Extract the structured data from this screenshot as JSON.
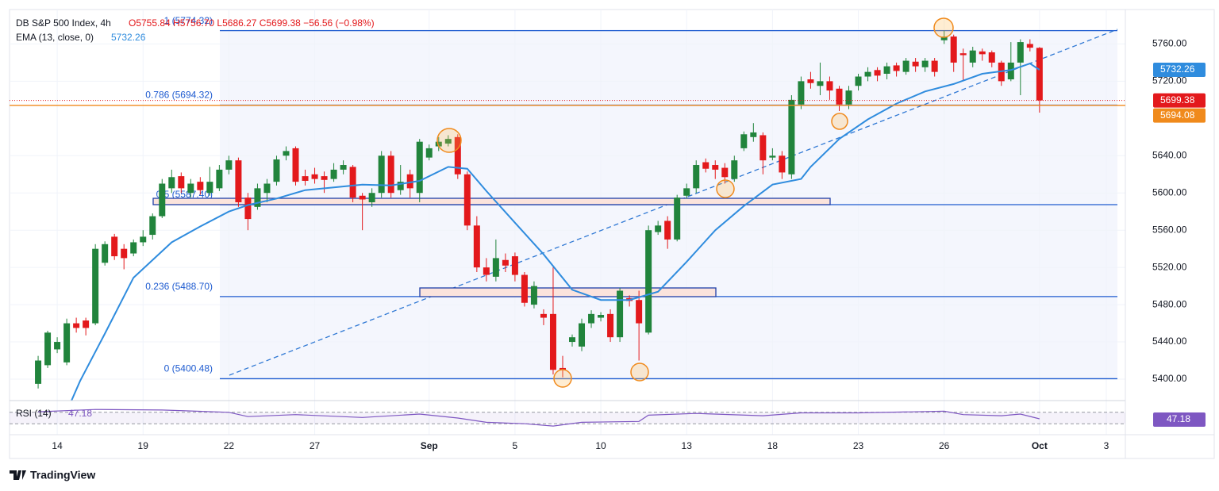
{
  "chart_data": {
    "type": "candlestick",
    "title": "DB S&P 500 Index, 4h",
    "ohlc_text": "O5755.84 H5756.70 L5686.27 C5699.38 −56.56 (−0.98%)",
    "up_color": "#21843c",
    "down_color": "#e3191c",
    "open": [
      5395,
      5415,
      5432,
      5418,
      5460,
      5463,
      5460,
      5525,
      5553,
      5540,
      5535,
      5547,
      5555,
      5575,
      5605,
      5618,
      5600,
      5612,
      5600,
      5605,
      5625,
      5635,
      5595,
      5585,
      5600,
      5612,
      5640,
      5648,
      5618,
      5620,
      5618,
      5615,
      5625,
      5628,
      5597,
      5590,
      5600,
      5640,
      5603,
      5620,
      5600,
      5638,
      5650,
      5653,
      5660,
      5620,
      5565,
      5520,
      5510,
      5528,
      5532,
      5512,
      5480,
      5470,
      5470,
      5412,
      5440,
      5435,
      5460,
      5466,
      5470,
      5445,
      5487,
      5485,
      5450,
      5558,
      5570,
      5550,
      5597,
      5605,
      5633,
      5630,
      5627,
      5615,
      5648,
      5660,
      5662,
      5638,
      5640,
      5620,
      5695,
      5722,
      5715,
      5720,
      5712,
      5695,
      5715,
      5725,
      5732,
      5728,
      5737,
      5730,
      5741,
      5735,
      5742,
      5764,
      5768,
      5750,
      5740,
      5752,
      5751,
      5740,
      5722,
      5740,
      5760,
      5755.84
    ],
    "high": [
      5425,
      5452,
      5445,
      5465,
      5466,
      5466,
      5545,
      5548,
      5556,
      5545,
      5550,
      5560,
      5578,
      5615,
      5625,
      5622,
      5615,
      5617,
      5628,
      5630,
      5640,
      5638,
      5600,
      5610,
      5615,
      5640,
      5650,
      5650,
      5625,
      5627,
      5623,
      5632,
      5635,
      5630,
      5600,
      5605,
      5645,
      5645,
      5630,
      5625,
      5658,
      5652,
      5660,
      5662,
      5663,
      5623,
      5575,
      5530,
      5550,
      5535,
      5536,
      5515,
      5505,
      5475,
      5520,
      5425,
      5448,
      5465,
      5474,
      5472,
      5475,
      5498,
      5490,
      5495,
      5565,
      5570,
      5575,
      5598,
      5610,
      5635,
      5637,
      5635,
      5632,
      5640,
      5666,
      5675,
      5665,
      5648,
      5645,
      5705,
      5725,
      5730,
      5740,
      5725,
      5715,
      5715,
      5728,
      5735,
      5735,
      5740,
      5740,
      5745,
      5745,
      5745,
      5745,
      5774.32,
      5770,
      5755,
      5757,
      5755,
      5753,
      5742,
      5762,
      5765,
      5765,
      5756.7
    ],
    "low": [
      5390,
      5412,
      5428,
      5415,
      5450,
      5447,
      5458,
      5522,
      5528,
      5518,
      5532,
      5543,
      5550,
      5573,
      5600,
      5600,
      5595,
      5598,
      5597,
      5602,
      5620,
      5585,
      5560,
      5582,
      5590,
      5608,
      5635,
      5608,
      5608,
      5610,
      5600,
      5612,
      5620,
      5590,
      5560,
      5585,
      5595,
      5595,
      5598,
      5595,
      5590,
      5635,
      5645,
      5650,
      5615,
      5560,
      5515,
      5505,
      5505,
      5515,
      5505,
      5478,
      5476,
      5458,
      5405,
      5402,
      5435,
      5430,
      5455,
      5462,
      5440,
      5440,
      5478,
      5420,
      5448,
      5555,
      5540,
      5548,
      5594,
      5600,
      5622,
      5615,
      5610,
      5612,
      5645,
      5655,
      5620,
      5635,
      5615,
      5615,
      5690,
      5712,
      5705,
      5700,
      5688,
      5690,
      5710,
      5720,
      5720,
      5722,
      5725,
      5727,
      5730,
      5730,
      5725,
      5760,
      5730,
      5720,
      5735,
      5742,
      5735,
      5715,
      5720,
      5705,
      5752,
      5686.27
    ],
    "close": [
      5420,
      5450,
      5440,
      5460,
      5455,
      5455,
      5540,
      5545,
      5532,
      5530,
      5547,
      5553,
      5575,
      5610,
      5617,
      5605,
      5610,
      5603,
      5612,
      5625,
      5635,
      5590,
      5572,
      5605,
      5610,
      5636,
      5645,
      5612,
      5613,
      5615,
      5614,
      5625,
      5630,
      5595,
      5593,
      5600,
      5640,
      5600,
      5612,
      5605,
      5655,
      5648,
      5655,
      5658,
      5620,
      5565,
      5520,
      5512,
      5530,
      5522,
      5512,
      5482,
      5500,
      5466,
      5410,
      5410,
      5445,
      5460,
      5470,
      5469,
      5445,
      5495,
      5484,
      5460,
      5560,
      5565,
      5550,
      5595,
      5605,
      5630,
      5626,
      5625,
      5617,
      5635,
      5663,
      5665,
      5635,
      5640,
      5622,
      5700,
      5720,
      5718,
      5720,
      5710,
      5695,
      5710,
      5725,
      5730,
      5726,
      5736,
      5731,
      5742,
      5736,
      5742,
      5730,
      5768,
      5740,
      5748,
      5753,
      5749,
      5740,
      5720,
      5740,
      5762,
      5756,
      5699.38
    ],
    "ema": {
      "name": "EMA (13, close, 0)",
      "last_label": "5732.26",
      "color": "#2f8cde",
      "x": [
        3.5,
        4.4,
        7,
        10,
        14,
        17,
        20,
        22,
        25,
        28,
        31,
        34,
        37,
        40,
        43,
        45,
        47,
        50,
        53,
        56,
        59,
        62,
        65,
        68,
        71,
        74,
        77,
        80,
        81,
        84,
        87,
        90,
        93,
        96,
        99,
        102,
        104,
        105
      ],
      "values": [
        5377,
        5398,
        5449,
        5509,
        5547,
        5564,
        5580,
        5587,
        5594,
        5603,
        5606,
        5609,
        5608,
        5613,
        5628,
        5626,
        5602,
        5568,
        5534,
        5496,
        5485,
        5485,
        5494,
        5526,
        5560,
        5586,
        5609,
        5615,
        5628,
        5658,
        5679,
        5696,
        5709,
        5717,
        5728,
        5732,
        5739,
        5732.26
      ]
    },
    "rsi": {
      "name": "RSI (14)",
      "last_label": "47.18",
      "color": "#7e57c2",
      "ylim": [
        0,
        100
      ],
      "bands": [
        70,
        30
      ],
      "x": [
        0,
        6,
        13,
        20,
        22,
        27,
        34,
        40,
        44,
        47,
        51,
        54,
        57,
        63,
        64,
        69,
        76,
        80,
        86,
        95,
        97,
        101,
        103,
        105
      ],
      "values": [
        72,
        80,
        78,
        70,
        55,
        62,
        52,
        64,
        50,
        35,
        30,
        22,
        35,
        38,
        60,
        66,
        58,
        68,
        68,
        74,
        62,
        58,
        64,
        47.18
      ]
    },
    "fib_levels": [
      {
        "label": "1 (5774.32)",
        "value": 5774.32
      },
      {
        "label": "0.786 (5694.32)",
        "value": 5694.32
      },
      {
        "label": "0.5 (5587.40)",
        "value": 5587.4
      },
      {
        "label": "0.236 (5488.70)",
        "value": 5488.7
      },
      {
        "label": "0 (5400.48)",
        "value": 5400.48
      }
    ],
    "fib_color": "#1e5bd0",
    "price_tags": [
      {
        "label": "5732.26",
        "value": 5732.26,
        "color": "#2f8cde"
      },
      {
        "label": "5699.38",
        "value": 5699.38,
        "color": "#e3191c"
      },
      {
        "label": "5694.08",
        "value": 5694.08,
        "color": "#f08a1c"
      }
    ],
    "ylim": [
      5377,
      5797
    ],
    "yticks": [
      {
        "value": 5400,
        "label": "5400.00"
      },
      {
        "value": 5440,
        "label": "5440.00"
      },
      {
        "value": 5480,
        "label": "5480.00"
      },
      {
        "value": 5520,
        "label": "5520.00"
      },
      {
        "value": 5560,
        "label": "5560.00"
      },
      {
        "value": 5600,
        "label": "5600.00"
      },
      {
        "value": 5640,
        "label": "5640.00"
      },
      {
        "value": 5720,
        "label": "5720.00"
      },
      {
        "value": 5760,
        "label": "5760.00"
      }
    ],
    "xlim": [
      -3,
      114
    ],
    "xticks": [
      {
        "value": 2,
        "label": "14"
      },
      {
        "value": 11,
        "label": "19"
      },
      {
        "value": 20,
        "label": "22"
      },
      {
        "value": 29,
        "label": "27"
      },
      {
        "value": 41,
        "label": "Sep"
      },
      {
        "value": 50,
        "label": "5"
      },
      {
        "value": 59,
        "label": "10"
      },
      {
        "value": 68,
        "label": "13"
      },
      {
        "value": 77,
        "label": "18"
      },
      {
        "value": 86,
        "label": "23"
      },
      {
        "value": 95,
        "label": "26"
      },
      {
        "value": 105,
        "label": "Oct"
      },
      {
        "value": 112,
        "label": "3"
      }
    ],
    "grid": true
  },
  "brand": "TradingView"
}
